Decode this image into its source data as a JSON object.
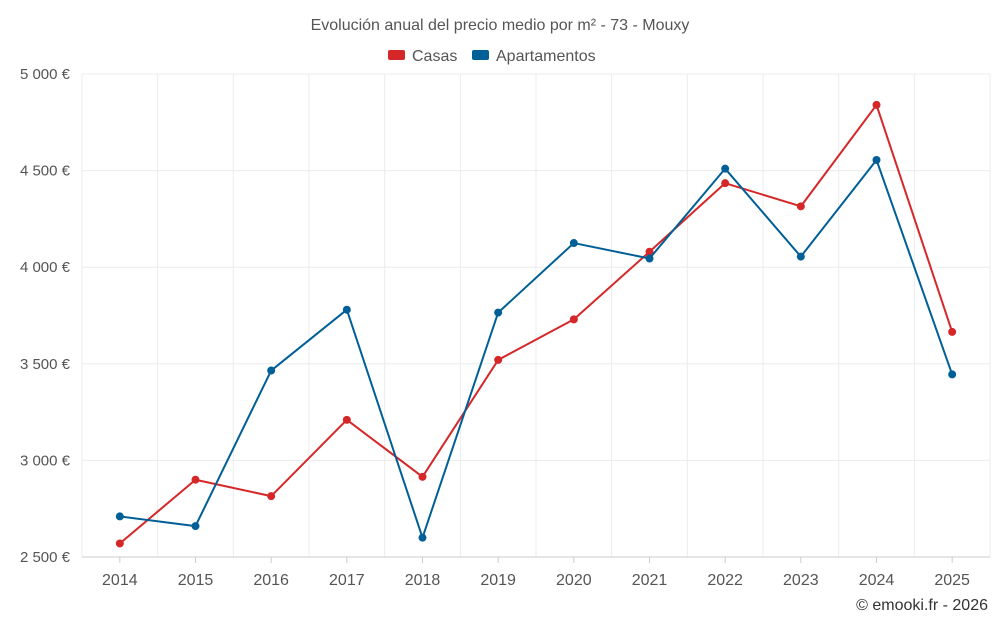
{
  "chart_data": {
    "type": "line",
    "title": "Evolución anual del precio medio por m² - 73 - Mouxy",
    "categories": [
      "2014",
      "2015",
      "2016",
      "2017",
      "2018",
      "2019",
      "2020",
      "2021",
      "2022",
      "2023",
      "2024",
      "2025"
    ],
    "series": [
      {
        "name": "Casas",
        "color": "#d62728",
        "values": [
          2570,
          2900,
          2815,
          3210,
          2915,
          3520,
          3730,
          4080,
          4435,
          4315,
          4840,
          3665
        ]
      },
      {
        "name": "Apartamentos",
        "color": "#005f96",
        "values": [
          2710,
          2660,
          3465,
          3780,
          2600,
          3765,
          4125,
          4045,
          4510,
          4055,
          4555,
          3445
        ]
      }
    ],
    "ylim": [
      2500,
      5000
    ],
    "yticks": [
      2500,
      3000,
      3500,
      4000,
      4500,
      5000
    ],
    "ytick_labels": [
      "2 500 €",
      "3 000 €",
      "3 500 €",
      "4 000 €",
      "4 500 €",
      "5 000 €"
    ],
    "xlabel": "",
    "ylabel": "",
    "grid": true,
    "legend_position": "top-center",
    "credit": "© emooki.fr - 2026"
  }
}
